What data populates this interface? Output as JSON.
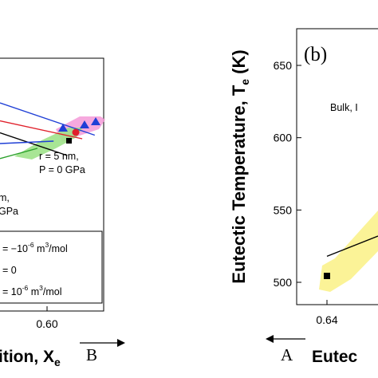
{
  "chart_data": [
    {
      "panel": "a",
      "type": "line",
      "xlabel": "ition, X",
      "xlabel_sub": "e",
      "x_ticks": [
        "0.60"
      ],
      "axis_note": "B",
      "series": [
        {
          "color": "#1f3fd6",
          "points": [
            [
              0.56,
              0.748
            ],
            [
              0.636,
              0.694
            ]
          ]
        },
        {
          "color": "#e0202b",
          "points": [
            [
              0.56,
              0.718
            ],
            [
              0.626,
              0.688
            ]
          ]
        },
        {
          "color": "#000000",
          "points": [
            [
              0.56,
              0.698
            ],
            [
              0.614,
              0.66
            ]
          ]
        },
        {
          "color": "#1f3fd6",
          "points": [
            [
              0.56,
              0.68
            ],
            [
              0.603,
              0.684
            ]
          ]
        },
        {
          "color": "#2aa02a",
          "points": [
            [
              0.56,
              0.655
            ],
            [
              0.59,
              0.672
            ]
          ]
        }
      ],
      "annotations": [
        {
          "lines": [
            "r = 5 nm,",
            "P = 0 GPa"
          ]
        },
        {
          "lines": [
            "m,",
            "GPa"
          ]
        }
      ],
      "legend": {
        "placement": "bottom",
        "entries": [
          {
            "label": "= −10",
            "exp": "-6",
            "unit": " m",
            "unit_exp": "3",
            "tail": "/mol"
          },
          {
            "label": "= 0"
          },
          {
            "label": "= 10",
            "exp": "-6",
            "unit": " m",
            "unit_exp": "3",
            "tail": "/mol"
          }
        ]
      }
    },
    {
      "panel": "b",
      "panel_label": "(b)",
      "type": "line",
      "ylabel": "Eutectic Temperature, T",
      "ylabel_sub": "e",
      "ylabel_unit": " (K)",
      "ylim": [
        500,
        660
      ],
      "y_ticks": [
        500,
        550,
        600,
        650
      ],
      "x_ticks": [
        "0.64"
      ],
      "xlabel": "Eutec",
      "axis_note": "A",
      "annotation": "Bulk, I",
      "series": [
        {
          "color": "#000000",
          "points": [
            [
              0.64,
              518
            ],
            [
              0.662,
              532
            ]
          ]
        }
      ]
    }
  ]
}
